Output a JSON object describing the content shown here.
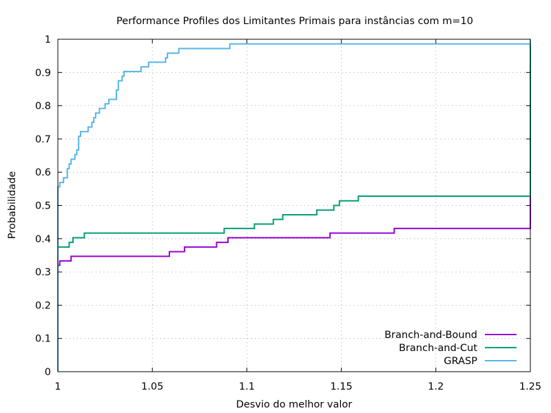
{
  "chart_data": {
    "type": "line",
    "title": "Performance Profiles dos Limitantes Primais para instâncias com m=10",
    "xlabel": "Desvio do melhor valor",
    "ylabel": "Probabilidade",
    "xlim": [
      1,
      1.25
    ],
    "ylim": [
      0,
      1
    ],
    "x_ticks": [
      "1",
      "1.05",
      "1.1",
      "1.15",
      "1.2",
      "1.25"
    ],
    "y_ticks": [
      "0",
      "0.1",
      "0.2",
      "0.3",
      "0.4",
      "0.5",
      "0.6",
      "0.7",
      "0.8",
      "0.9",
      "1"
    ],
    "grid": true,
    "legend_position": "bottom-right",
    "series": [
      {
        "name": "Branch-and-Bound",
        "color": "#9400d3",
        "points": [
          [
            1.0,
            0.0
          ],
          [
            1.0,
            0.32
          ],
          [
            1.001,
            0.333
          ],
          [
            1.007,
            0.347
          ],
          [
            1.059,
            0.361
          ],
          [
            1.067,
            0.375
          ],
          [
            1.084,
            0.389
          ],
          [
            1.09,
            0.403
          ],
          [
            1.144,
            0.417
          ],
          [
            1.178,
            0.431
          ],
          [
            1.25,
            0.431
          ],
          [
            1.25,
            1.0
          ]
        ]
      },
      {
        "name": "Branch-and-Cut",
        "color": "#009e73",
        "points": [
          [
            1.0,
            0.0
          ],
          [
            1.0,
            0.375
          ],
          [
            1.006,
            0.389
          ],
          [
            1.008,
            0.403
          ],
          [
            1.014,
            0.417
          ],
          [
            1.088,
            0.431
          ],
          [
            1.104,
            0.444
          ],
          [
            1.114,
            0.458
          ],
          [
            1.119,
            0.472
          ],
          [
            1.137,
            0.486
          ],
          [
            1.146,
            0.5
          ],
          [
            1.149,
            0.514
          ],
          [
            1.159,
            0.528
          ],
          [
            1.25,
            0.528
          ],
          [
            1.25,
            1.0
          ]
        ]
      },
      {
        "name": "GRASP",
        "color": "#56b4e9",
        "points": [
          [
            1.0,
            0.0
          ],
          [
            1.0,
            0.556
          ],
          [
            1.001,
            0.569
          ],
          [
            1.003,
            0.583
          ],
          [
            1.005,
            0.597
          ],
          [
            1.005,
            0.611
          ],
          [
            1.006,
            0.625
          ],
          [
            1.007,
            0.639
          ],
          [
            1.009,
            0.653
          ],
          [
            1.01,
            0.667
          ],
          [
            1.011,
            0.694
          ],
          [
            1.011,
            0.708
          ],
          [
            1.012,
            0.722
          ],
          [
            1.016,
            0.736
          ],
          [
            1.018,
            0.75
          ],
          [
            1.019,
            0.764
          ],
          [
            1.02,
            0.778
          ],
          [
            1.022,
            0.792
          ],
          [
            1.025,
            0.806
          ],
          [
            1.027,
            0.819
          ],
          [
            1.031,
            0.833
          ],
          [
            1.031,
            0.847
          ],
          [
            1.032,
            0.861
          ],
          [
            1.032,
            0.875
          ],
          [
            1.034,
            0.889
          ],
          [
            1.035,
            0.903
          ],
          [
            1.044,
            0.917
          ],
          [
            1.048,
            0.931
          ],
          [
            1.057,
            0.944
          ],
          [
            1.058,
            0.958
          ],
          [
            1.064,
            0.972
          ],
          [
            1.091,
            0.986
          ],
          [
            1.25,
            0.986
          ],
          [
            1.25,
            1.0
          ]
        ]
      }
    ]
  }
}
